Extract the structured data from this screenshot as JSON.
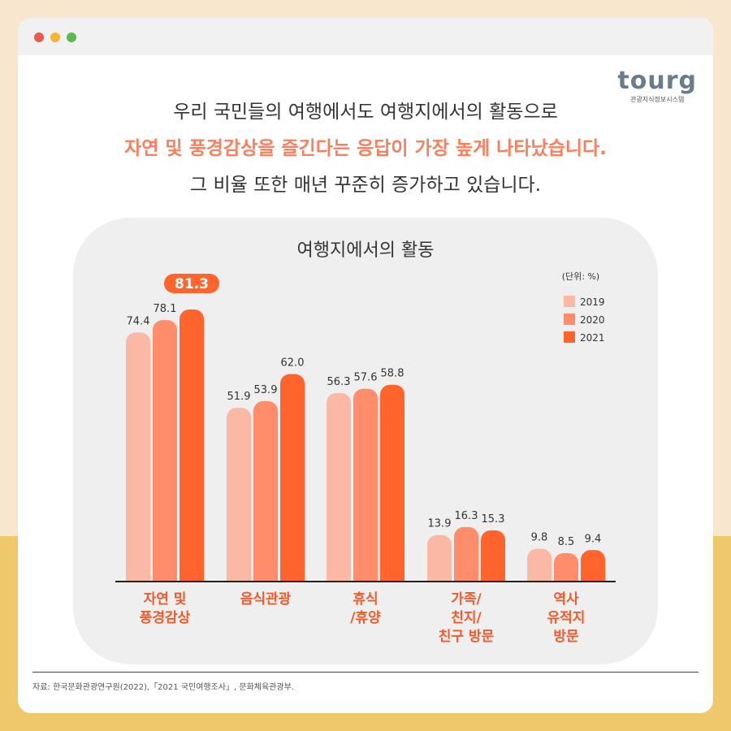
{
  "header": {
    "line1": "우리 국민들의 여행에서도 여행지에서의 활동으로",
    "line2": "자연 및 풍경감상을 즐긴다는 응답이 가장 높게 나타났습니다.",
    "line3": "그 비율 또한 매년 꾸준히 증가하고 있습니다."
  },
  "logo": {
    "text": "tourg",
    "subtitle": "관광지식정보시스템"
  },
  "source": "자료: 한국문화관광연구원(2022),「2021 국민여행조사」, 문화체육관광부.",
  "chart_data": {
    "type": "bar",
    "title": "여행지에서의 활동",
    "unit": "(단위: %)",
    "legend_position": "top-right",
    "categories": [
      [
        "자연 및",
        "풍경감상"
      ],
      [
        "음식관광"
      ],
      [
        "휴식",
        "/휴양"
      ],
      [
        "가족/",
        "친지/",
        "친구 방문"
      ],
      [
        "역사",
        "유적지",
        "방문"
      ]
    ],
    "series": [
      {
        "name": "2019",
        "color": "#FBB8A5",
        "values": [
          74.4,
          51.9,
          56.3,
          13.9,
          9.8
        ]
      },
      {
        "name": "2020",
        "color": "#FF8C6A",
        "values": [
          78.1,
          53.9,
          57.6,
          16.3,
          8.5
        ]
      },
      {
        "name": "2021",
        "color": "#FF642C",
        "values": [
          81.3,
          62.0,
          58.8,
          15.3,
          9.4
        ]
      }
    ],
    "highlight": {
      "category": 0,
      "series": 2
    },
    "ylim": [
      0,
      81.3
    ],
    "grid": false
  }
}
